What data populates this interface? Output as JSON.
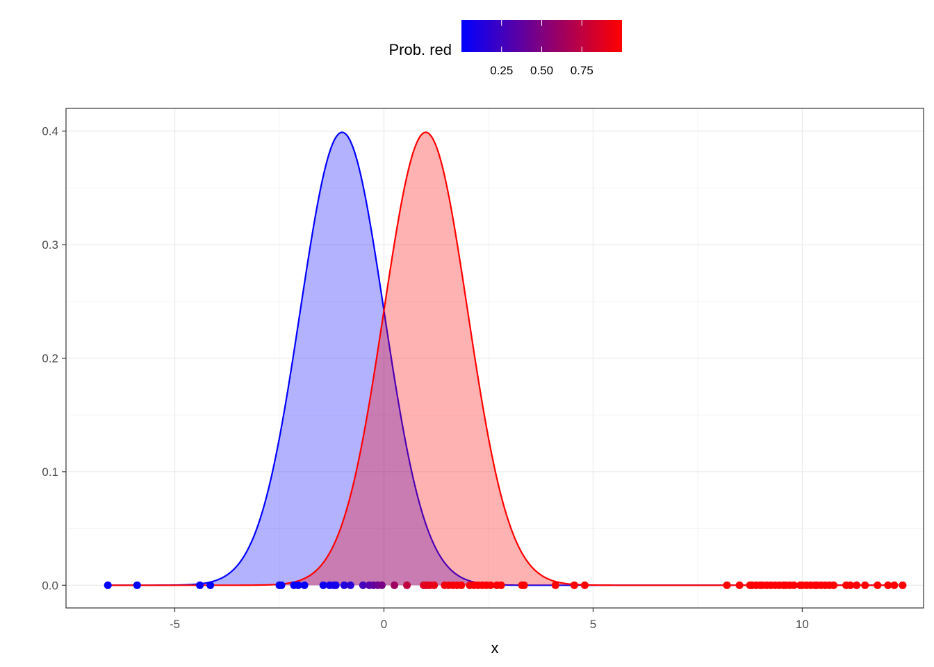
{
  "chart_data": {
    "type": "area",
    "xlabel": "x",
    "ylabel": "",
    "xlim": [
      -7.6,
      12.9
    ],
    "ylim": [
      -0.02,
      0.42
    ],
    "x_ticks": [
      -5,
      0,
      5,
      10
    ],
    "y_ticks": [
      0.0,
      0.1,
      0.2,
      0.3,
      0.4
    ],
    "x_tick_labels": [
      "-5",
      "0",
      "5",
      "10"
    ],
    "y_tick_labels": [
      "0.0",
      "0.1",
      "0.2",
      "0.3",
      "0.4"
    ],
    "grid": true,
    "series": [
      {
        "type": "density",
        "distribution": "normal",
        "mean": -1,
        "sd": 1,
        "line_color": "#0000ff",
        "fill_color": "#0000ff",
        "fill_opacity": 0.3,
        "x_range": [
          -6.6,
          12.3
        ]
      },
      {
        "type": "density",
        "distribution": "normal",
        "mean": 1,
        "sd": 1,
        "line_color": "#ff0000",
        "fill_color": "#ff0000",
        "fill_opacity": 0.3,
        "x_range": [
          -6.6,
          12.3
        ]
      }
    ],
    "points": {
      "y": 0,
      "color_variable": "Prob. red",
      "x": [
        -6.6,
        -5.9,
        -4.4,
        -4.15,
        -2.5,
        -2.45,
        -2.15,
        -2.05,
        -1.9,
        -1.45,
        -1.3,
        -1.2,
        -1.15,
        -0.95,
        -0.8,
        -0.5,
        -0.35,
        -0.25,
        -0.15,
        -0.05,
        0.25,
        0.55,
        0.95,
        1.0,
        1.05,
        1.1,
        1.2,
        1.45,
        1.55,
        1.65,
        1.75,
        1.85,
        2.05,
        2.15,
        2.25,
        2.35,
        2.45,
        2.55,
        2.7,
        2.8,
        3.3,
        3.35,
        4.1,
        4.55,
        4.8,
        8.2,
        8.5,
        8.75,
        8.8,
        8.9,
        9.0,
        9.05,
        9.15,
        9.25,
        9.35,
        9.45,
        9.55,
        9.6,
        9.7,
        9.8,
        9.95,
        10.0,
        10.1,
        10.2,
        10.3,
        10.35,
        10.45,
        10.55,
        10.65,
        10.75,
        11.05,
        11.15,
        11.3,
        11.5,
        11.8,
        12.05,
        12.2,
        12.4
      ]
    },
    "legend": {
      "title": "Prob. red",
      "position": "top",
      "low_color": "#0000ff",
      "high_color": "#ff0000",
      "range": [
        0.0,
        1.0
      ],
      "breaks": [
        0.25,
        0.5,
        0.75
      ],
      "labels": [
        "0.25",
        "0.50",
        "0.75"
      ]
    }
  }
}
